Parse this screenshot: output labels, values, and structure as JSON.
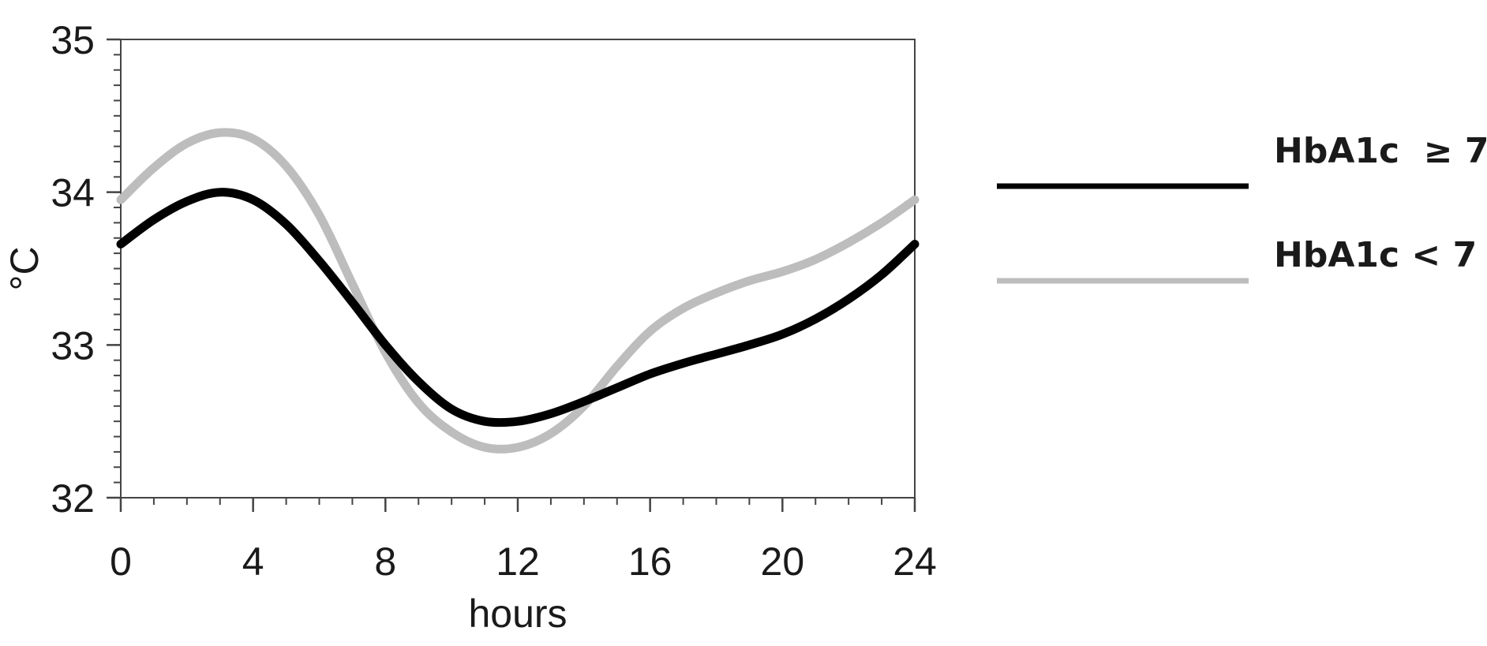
{
  "chart_data": {
    "type": "line",
    "xlabel": "hours",
    "ylabel": "°C",
    "xlim": [
      0,
      24
    ],
    "ylim": [
      32,
      35
    ],
    "x_ticks": [
      0,
      4,
      8,
      12,
      16,
      20,
      24
    ],
    "y_ticks": [
      32,
      33,
      34,
      35
    ],
    "x_minor_step": 1,
    "y_minor_step": 0.1,
    "grid": false,
    "legend_position": "right",
    "series": [
      {
        "name": "HbA1c  ≥ 7",
        "color": "#000000",
        "x": [
          0,
          1,
          2,
          3,
          4,
          5,
          6,
          7,
          8,
          9,
          10,
          11,
          12,
          13,
          14,
          15,
          16,
          17,
          18,
          19,
          20,
          21,
          22,
          23,
          24
        ],
        "y": [
          33.66,
          33.82,
          33.94,
          34.0,
          33.95,
          33.79,
          33.55,
          33.28,
          33.0,
          32.76,
          32.58,
          32.5,
          32.5,
          32.55,
          32.63,
          32.72,
          32.81,
          32.88,
          32.94,
          33.0,
          33.07,
          33.17,
          33.3,
          33.46,
          33.66
        ]
      },
      {
        "name": "HbA1c < 7",
        "color": "#bdbdbd",
        "x": [
          0,
          1,
          2,
          3,
          4,
          5,
          6,
          7,
          8,
          9,
          10,
          11,
          12,
          13,
          14,
          15,
          16,
          17,
          18,
          19,
          20,
          21,
          22,
          23,
          24
        ],
        "y": [
          33.95,
          34.16,
          34.32,
          34.39,
          34.35,
          34.17,
          33.85,
          33.4,
          32.95,
          32.62,
          32.43,
          32.33,
          32.33,
          32.42,
          32.6,
          32.86,
          33.09,
          33.24,
          33.34,
          33.42,
          33.48,
          33.56,
          33.67,
          33.8,
          33.95
        ]
      }
    ]
  }
}
